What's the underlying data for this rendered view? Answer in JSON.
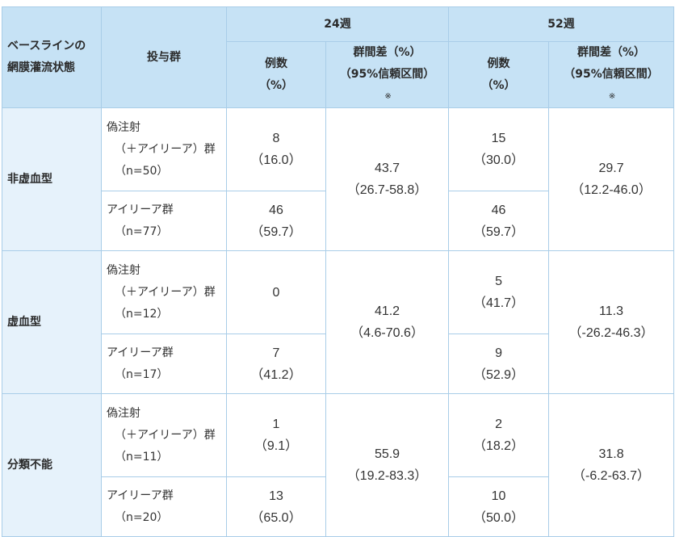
{
  "header": {
    "baseline": [
      "ベースラインの",
      "網膜灌流状態"
    ],
    "arm": "投与群",
    "week24": "24週",
    "week52": "52週",
    "count": [
      "例数",
      "（%）"
    ],
    "diff": [
      "群間差（%）",
      "（95%信頼区間）"
    ],
    "note_mark": "※"
  },
  "groups": [
    {
      "name": "非虚血型",
      "sham": {
        "label": [
          "偽注射",
          "（＋アイリーア）群",
          "（n=50）"
        ],
        "w24": [
          "8",
          "（16.0）"
        ],
        "w52": [
          "15",
          "（30.0）"
        ]
      },
      "eylea": {
        "label": [
          "アイリーア群",
          "（n=77）"
        ],
        "w24": [
          "46",
          "（59.7）"
        ],
        "w52": [
          "46",
          "（59.7）"
        ]
      },
      "diff24": [
        "43.7",
        "（26.7-58.8）"
      ],
      "diff52": [
        "29.7",
        "（12.2-46.0）"
      ]
    },
    {
      "name": "虚血型",
      "sham": {
        "label": [
          "偽注射",
          "（＋アイリーア）群",
          "（n=12）"
        ],
        "w24": [
          "0",
          ""
        ],
        "w52": [
          "5",
          "（41.7）"
        ]
      },
      "eylea": {
        "label": [
          "アイリーア群",
          "（n=17）"
        ],
        "w24": [
          "7",
          "（41.2）"
        ],
        "w52": [
          "9",
          "（52.9）"
        ]
      },
      "diff24": [
        "41.2",
        "（4.6-70.6）"
      ],
      "diff52": [
        "11.3",
        "（-26.2-46.3）"
      ]
    },
    {
      "name": "分類不能",
      "sham": {
        "label": [
          "偽注射",
          "（＋アイリーア）群",
          "（n=11）"
        ],
        "w24": [
          "1",
          "（9.1）"
        ],
        "w52": [
          "2",
          "（18.2）"
        ]
      },
      "eylea": {
        "label": [
          "アイリーア群",
          "（n=20）"
        ],
        "w24": [
          "13",
          "（65.0）"
        ],
        "w52": [
          "10",
          "（50.0）"
        ]
      },
      "diff24": [
        "55.9",
        "（19.2-83.3）"
      ],
      "diff52": [
        "31.8",
        "（-6.2-63.7）"
      ]
    }
  ]
}
